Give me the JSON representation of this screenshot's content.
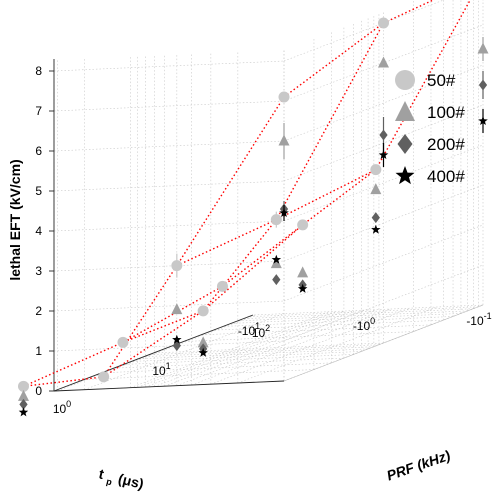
{
  "chart_data": {
    "type": "scatter3d",
    "title": "",
    "zlabel": "lethal EFT (kV/cm)",
    "xlabel_main": "t",
    "xlabel_sub": "p",
    "xlabel_unit": "(μs)",
    "ylabel": "PRF (kHz)",
    "zlim": [
      0,
      8
    ],
    "z_ticks": [
      "0",
      "1",
      "2",
      "3",
      "4",
      "5",
      "6",
      "7",
      "8"
    ],
    "tp_ticks": [
      {
        "base": "-10",
        "exp": "-1"
      },
      {
        "base": "-10",
        "exp": "0"
      },
      {
        "base": "-10",
        "exp": "1"
      }
    ],
    "prf_ticks": [
      {
        "base": "10",
        "exp": "0"
      },
      {
        "base": "10",
        "exp": "1"
      },
      {
        "base": "10",
        "exp": "2"
      }
    ],
    "tp_values_us": [
      0.1,
      0.5,
      1.5,
      5
    ],
    "prf_values_khz": [
      1,
      10,
      100
    ],
    "grid": true,
    "legend_position": "top-right",
    "series": [
      {
        "name": "50#",
        "marker": "circle",
        "color": "#c8c8c8",
        "points": [
          {
            "tp": 0.1,
            "prf": 1,
            "z": 7.1,
            "err": 0
          },
          {
            "tp": 0.5,
            "prf": 1,
            "z": 3.0,
            "err": 0.3
          },
          {
            "tp": 1.5,
            "prf": 1,
            "z": 0.3,
            "err": 0
          },
          {
            "tp": 5,
            "prf": 1,
            "z": 0.15,
            "err": 0
          },
          {
            "tp": 0.1,
            "prf": 10,
            "z": 8.0,
            "err": 0
          },
          {
            "tp": 0.5,
            "prf": 10,
            "z": 3.2,
            "err": 0.2
          },
          {
            "tp": 1.5,
            "prf": 10,
            "z": 1.0,
            "err": 0
          },
          {
            "tp": 5,
            "prf": 10,
            "z": 0.3,
            "err": 0.1
          },
          {
            "tp": 0.1,
            "prf": 100,
            "z": 8.2,
            "err": 0
          },
          {
            "tp": 0.5,
            "prf": 100,
            "z": 3.5,
            "err": 0
          },
          {
            "tp": 1.5,
            "prf": 100,
            "z": 2.2,
            "err": 0
          },
          {
            "tp": 5,
            "prf": 100,
            "z": 0.75,
            "err": 0
          }
        ]
      },
      {
        "name": "100#",
        "marker": "triangle",
        "color": "#a0a0a0",
        "points": [
          {
            "tp": 0.1,
            "prf": 1,
            "z": 6.0,
            "err": 0.45
          },
          {
            "tp": 0.5,
            "prf": 1,
            "z": 1.9,
            "err": 0
          },
          {
            "tp": 5,
            "prf": 1,
            "z": -0.1,
            "err": 0
          },
          {
            "tp": 0.1,
            "prf": 10,
            "z": 7.0,
            "err": 0
          },
          {
            "tp": 0.5,
            "prf": 10,
            "z": 2.1,
            "err": 0
          },
          {
            "tp": 1.5,
            "prf": 10,
            "z": 0.2,
            "err": 0
          },
          {
            "tp": 0.1,
            "prf": 100,
            "z": 6.4,
            "err": 0.3
          },
          {
            "tp": 0.5,
            "prf": 100,
            "z": 3.0,
            "err": 0
          },
          {
            "tp": 1.5,
            "prf": 100,
            "z": 1.0,
            "err": 0
          }
        ]
      },
      {
        "name": "200#",
        "marker": "diamond",
        "color": "#606060",
        "points": [
          {
            "tp": 0.1,
            "prf": 1,
            "z": 4.3,
            "err": 0.2
          },
          {
            "tp": 0.5,
            "prf": 1,
            "z": 1.0,
            "err": 0
          },
          {
            "tp": 5,
            "prf": 1,
            "z": -0.3,
            "err": 0
          },
          {
            "tp": 0.1,
            "prf": 10,
            "z": 5.2,
            "err": 0.45
          },
          {
            "tp": 0.5,
            "prf": 10,
            "z": 1.7,
            "err": 0
          },
          {
            "tp": 1.5,
            "prf": 10,
            "z": 0.05,
            "err": 0
          },
          {
            "tp": 0.1,
            "prf": 100,
            "z": 5.5,
            "err": 0.35
          },
          {
            "tp": 0.5,
            "prf": 100,
            "z": 2.3,
            "err": 0
          },
          {
            "tp": 1.5,
            "prf": 100,
            "z": 0.7,
            "err": 0
          }
        ]
      },
      {
        "name": "400#",
        "marker": "star",
        "color": "#000000",
        "points": [
          {
            "tp": 0.1,
            "prf": 1,
            "z": 4.2,
            "err": 0.2
          },
          {
            "tp": 0.5,
            "prf": 1,
            "z": 1.15,
            "err": 0
          },
          {
            "tp": 5,
            "prf": 1,
            "z": -0.5,
            "err": 0
          },
          {
            "tp": 0.1,
            "prf": 10,
            "z": 4.7,
            "err": 0.3
          },
          {
            "tp": 0.5,
            "prf": 10,
            "z": 2.2,
            "err": 0
          },
          {
            "tp": 1.5,
            "prf": 10,
            "z": -0.05,
            "err": 0
          },
          {
            "tp": 0.1,
            "prf": 100,
            "z": 4.6,
            "err": 0.3
          },
          {
            "tp": 0.5,
            "prf": 100,
            "z": 2.0,
            "err": 0
          },
          {
            "tp": 1.5,
            "prf": 100,
            "z": 0.6,
            "err": 0
          }
        ]
      }
    ],
    "connector": {
      "series": "50#",
      "color": "#ff0000",
      "style": "dotted"
    }
  }
}
